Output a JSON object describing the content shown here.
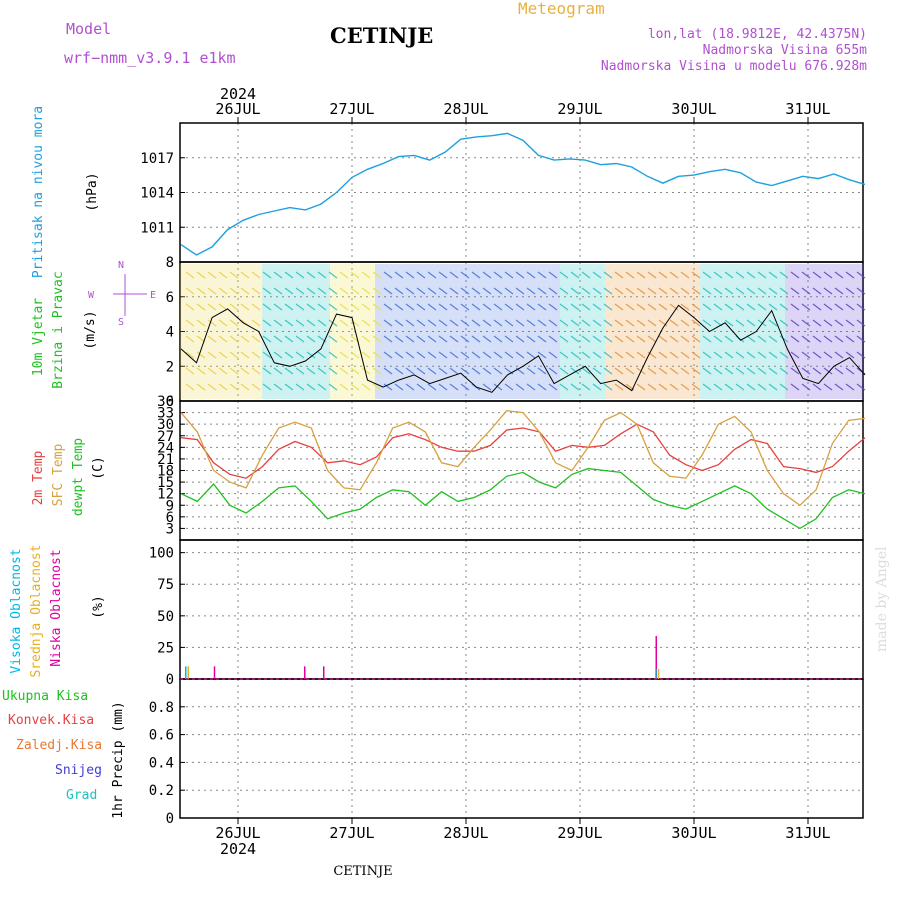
{
  "header": {
    "model_label": "Model",
    "model_name": "wrf−nmm_v3.9.1  e1km",
    "station": "CETINJE",
    "meteogram": "Meteogram",
    "coords": "lon,lat (18.9812E, 42.4375N)",
    "elevation": "Nadmorska Visina 655m",
    "model_elevation": "Nadmorska Visina u modelu 676.928m",
    "footer_station": "CETINJE",
    "watermark": "made by Angel"
  },
  "colors": {
    "pressure": "#1ea0e0",
    "temp2m": "#e84040",
    "sfc": "#d8a040",
    "dewpt": "#20c020",
    "high_cloud": "#00b8e8",
    "mid_cloud": "#e8b020",
    "low_cloud": "#e000a0",
    "purple": "#b050d0",
    "orange": "#e8a030"
  },
  "axis_time": {
    "top_year": "2024",
    "bottom_year": "2024",
    "days": [
      "26JUL",
      "27JUL",
      "28JUL",
      "29JUL",
      "30JUL",
      "31JUL"
    ]
  },
  "panel_labels": {
    "pressure": {
      "name": "Pritisak na nivou mora",
      "unit": "(hPa)"
    },
    "wind": {
      "name1": "10m Vjetar",
      "name2": "Brzina i Pravac",
      "unit": "(m/s)",
      "compass_n": "N",
      "compass_s": "S",
      "compass_w": "W",
      "compass_e": "E"
    },
    "temp": {
      "t2m": "2m Temp",
      "sfc": "SFC Temp",
      "dew": "dewpt Temp",
      "unit": "(C)"
    },
    "cloud": {
      "high": "Visoka Oblacnost",
      "mid": "Srednja Oblacnost",
      "low": "Niska Oblacnost",
      "unit": "(%)"
    },
    "precip": {
      "total": "Ukupna Kisa",
      "conv": "Konvek.Kisa",
      "frz": "Zaledj.Kisa",
      "snow": "Snijeg",
      "hail": "Grad",
      "unit": "1hr Precip (mm)"
    }
  },
  "chart_data": [
    {
      "type": "line",
      "panel": "pressure",
      "ylim": [
        1008,
        1020
      ],
      "yticks": [
        "1011",
        "1014",
        "1017"
      ],
      "x_start": 0,
      "x_end": 144,
      "x_note": "hours from 25JUL 12:00",
      "series": [
        {
          "values": [
            1009.5,
            1008.6,
            1009.3,
            1010.8,
            1011.6,
            1012.1,
            1012.4,
            1012.7,
            1012.5,
            1013.0,
            1014.0,
            1015.3,
            1016.0,
            1016.5,
            1017.1,
            1017.2,
            1016.8,
            1017.5,
            1018.6,
            1018.8,
            1018.9,
            1019.1,
            1018.5,
            1017.2,
            1016.8,
            1016.9,
            1016.8,
            1016.4,
            1016.5,
            1016.2,
            1015.4,
            1014.8,
            1015.4,
            1015.5,
            1015.8,
            1016.0,
            1015.7,
            1014.9,
            1014.6,
            1015.0,
            1015.4,
            1015.2,
            1015.6,
            1015.1,
            1014.7
          ]
        }
      ]
    },
    {
      "type": "line",
      "panel": "wind",
      "ylim": [
        0,
        8
      ],
      "yticks": [
        "0",
        "2",
        "4",
        "6",
        "8"
      ],
      "series": [
        {
          "values": [
            3.0,
            2.2,
            4.8,
            5.3,
            4.5,
            4.0,
            2.2,
            2.0,
            2.3,
            3.0,
            5.0,
            4.8,
            1.2,
            0.8,
            1.2,
            1.5,
            1.0,
            1.3,
            1.6,
            0.8,
            0.5,
            1.5,
            2.0,
            2.6,
            1.0,
            1.5,
            2.0,
            1.0,
            1.2,
            0.6,
            2.5,
            4.2,
            5.5,
            4.8,
            4.0,
            4.5,
            3.5,
            4.0,
            5.2,
            3.0,
            1.3,
            1.0,
            2.0,
            2.5,
            1.5
          ]
        }
      ]
    },
    {
      "type": "line",
      "panel": "temperature",
      "ylim": [
        0,
        36
      ],
      "yticks": [
        "3",
        "6",
        "9",
        "12",
        "15",
        "18",
        "21",
        "24",
        "27",
        "30",
        "33",
        "36"
      ],
      "series": [
        {
          "name": "2m Temp",
          "values": [
            26.5,
            26.0,
            20.0,
            17.0,
            16.0,
            19.0,
            23.5,
            25.5,
            24.0,
            20.0,
            20.5,
            19.5,
            21.5,
            26.5,
            27.5,
            26.0,
            24.0,
            23.0,
            23.0,
            24.5,
            28.5,
            29.0,
            28.0,
            23.0,
            24.5,
            24.0,
            24.5,
            27.5,
            30.0,
            28.0,
            22.0,
            19.5,
            18.0,
            19.5,
            23.5,
            26.0,
            25.0,
            19.0,
            18.5,
            17.5,
            19.0,
            23.0,
            26.5
          ]
        },
        {
          "name": "SFC Temp",
          "values": [
            33.0,
            28.0,
            18.0,
            15.0,
            13.5,
            22.0,
            29.0,
            30.5,
            29.0,
            18.0,
            13.5,
            13.0,
            20.0,
            29.0,
            30.5,
            28.0,
            20.0,
            19.0,
            24.0,
            28.5,
            33.5,
            33.0,
            28.0,
            20.0,
            18.0,
            24.0,
            31.0,
            33.0,
            30.0,
            20.0,
            16.5,
            16.0,
            22.0,
            30.0,
            32.0,
            28.0,
            18.0,
            12.0,
            9.0,
            13.0,
            25.0,
            31.0,
            31.5
          ]
        },
        {
          "name": "dewpt Temp",
          "values": [
            12.0,
            10.0,
            14.5,
            9.0,
            7.0,
            10.0,
            13.5,
            14.0,
            10.0,
            5.5,
            7.0,
            8.0,
            11.0,
            13.0,
            12.5,
            9.0,
            12.5,
            10.0,
            11.0,
            13.0,
            16.5,
            17.5,
            15.0,
            13.5,
            17.0,
            18.5,
            18.0,
            17.5,
            14.0,
            10.5,
            9.0,
            8.0,
            10.0,
            12.0,
            14.0,
            12.0,
            8.0,
            5.5,
            3.0,
            5.5,
            11.0,
            13.0,
            12.0
          ]
        }
      ]
    },
    {
      "type": "bar",
      "panel": "cloud",
      "ylim": [
        0,
        110
      ],
      "yticks": [
        "0",
        "25",
        "50",
        "75",
        "100"
      ],
      "bars": [
        {
          "x": 1,
          "values": [
            10,
            10,
            0
          ]
        },
        {
          "x": 6,
          "values": [
            0,
            0,
            10
          ]
        },
        {
          "x": 25,
          "values": [
            0,
            0,
            10
          ]
        },
        {
          "x": 29,
          "values": [
            0,
            0,
            10
          ]
        },
        {
          "x": 99,
          "values": [
            0,
            0,
            34
          ]
        },
        {
          "x": 100,
          "values": [
            8,
            8,
            0
          ]
        }
      ]
    },
    {
      "type": "bar",
      "panel": "precip",
      "ylim": [
        0,
        1.0
      ],
      "yticks": [
        "0",
        "0.2",
        "0.4",
        "0.6",
        "0.8"
      ],
      "values": []
    }
  ]
}
